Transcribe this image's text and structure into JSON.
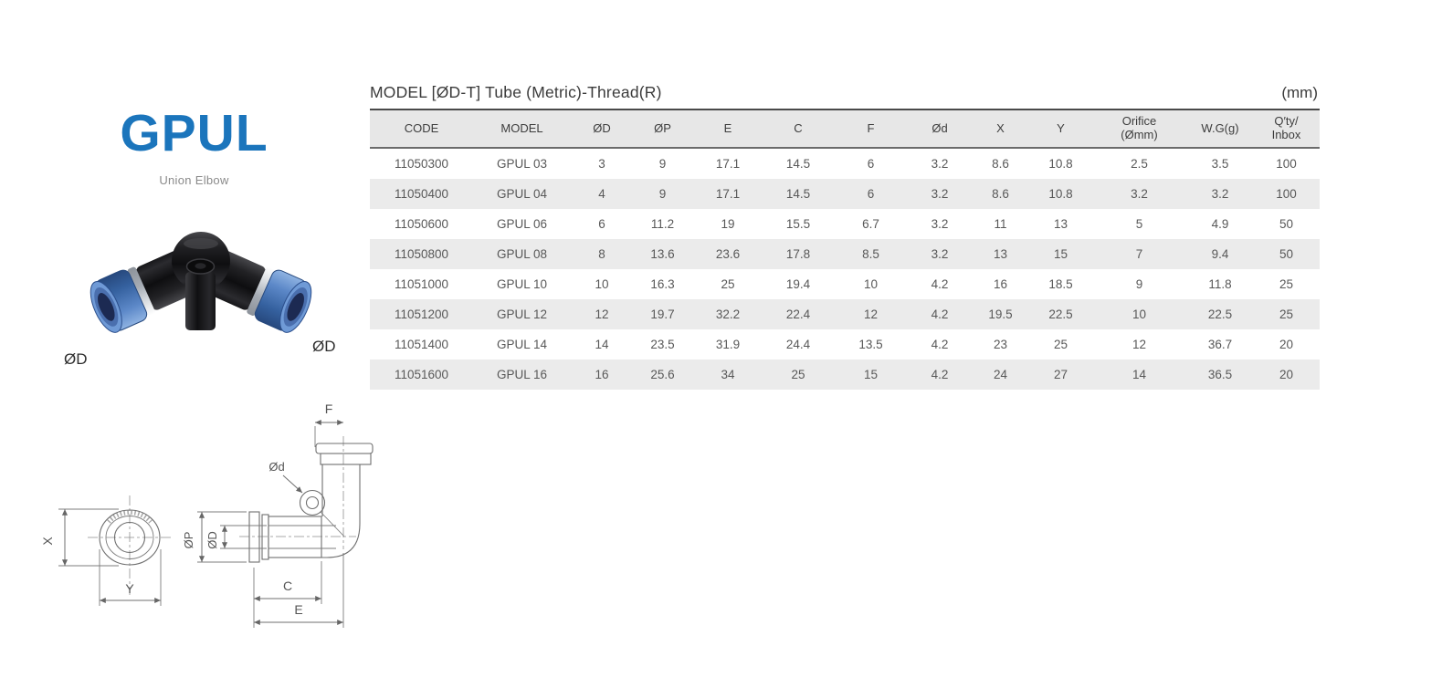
{
  "product": {
    "series": "GPUL",
    "name": "Union Elbow",
    "brand_color": "#1b75bc",
    "photo_labels": {
      "left": "ØD",
      "right": "ØD"
    }
  },
  "table": {
    "title": "MODEL [ØD-T]  Tube (Metric)-Thread(R)",
    "unit": "(mm)",
    "headers": [
      "CODE",
      "MODEL",
      "ØD",
      "ØP",
      "E",
      "C",
      "F",
      "Ød",
      "X",
      "Y",
      "Orifice\n(Ømm)",
      "W.G(g)",
      "Q′ty/\nInbox"
    ],
    "rows": [
      [
        "11050300",
        "GPUL 03",
        "3",
        "9",
        "17.1",
        "14.5",
        "6",
        "3.2",
        "8.6",
        "10.8",
        "2.5",
        "3.5",
        "100"
      ],
      [
        "11050400",
        "GPUL 04",
        "4",
        "9",
        "17.1",
        "14.5",
        "6",
        "3.2",
        "8.6",
        "10.8",
        "3.2",
        "3.2",
        "100"
      ],
      [
        "11050600",
        "GPUL 06",
        "6",
        "11.2",
        "19",
        "15.5",
        "6.7",
        "3.2",
        "11",
        "13",
        "5",
        "4.9",
        "50"
      ],
      [
        "11050800",
        "GPUL 08",
        "8",
        "13.6",
        "23.6",
        "17.8",
        "8.5",
        "3.2",
        "13",
        "15",
        "7",
        "9.4",
        "50"
      ],
      [
        "11051000",
        "GPUL 10",
        "10",
        "16.3",
        "25",
        "19.4",
        "10",
        "4.2",
        "16",
        "18.5",
        "9",
        "11.8",
        "25"
      ],
      [
        "11051200",
        "GPUL 12",
        "12",
        "19.7",
        "32.2",
        "22.4",
        "12",
        "4.2",
        "19.5",
        "22.5",
        "10",
        "22.5",
        "25"
      ],
      [
        "11051400",
        "GPUL 14",
        "14",
        "23.5",
        "31.9",
        "24.4",
        "13.5",
        "4.2",
        "23",
        "25",
        "12",
        "36.7",
        "20"
      ],
      [
        "11051600",
        "GPUL 16",
        "16",
        "25.6",
        "34",
        "25",
        "15",
        "4.2",
        "24",
        "27",
        "14",
        "36.5",
        "20"
      ]
    ],
    "colors": {
      "header_bg": "#e7e7e7",
      "alt_row_bg": "#ebebeb"
    }
  },
  "drawing": {
    "labels": {
      "f": "F",
      "orifice": "Ød",
      "op": "ØP",
      "od": "ØD",
      "x": "X",
      "y": "Y",
      "c": "C",
      "e": "E"
    }
  }
}
